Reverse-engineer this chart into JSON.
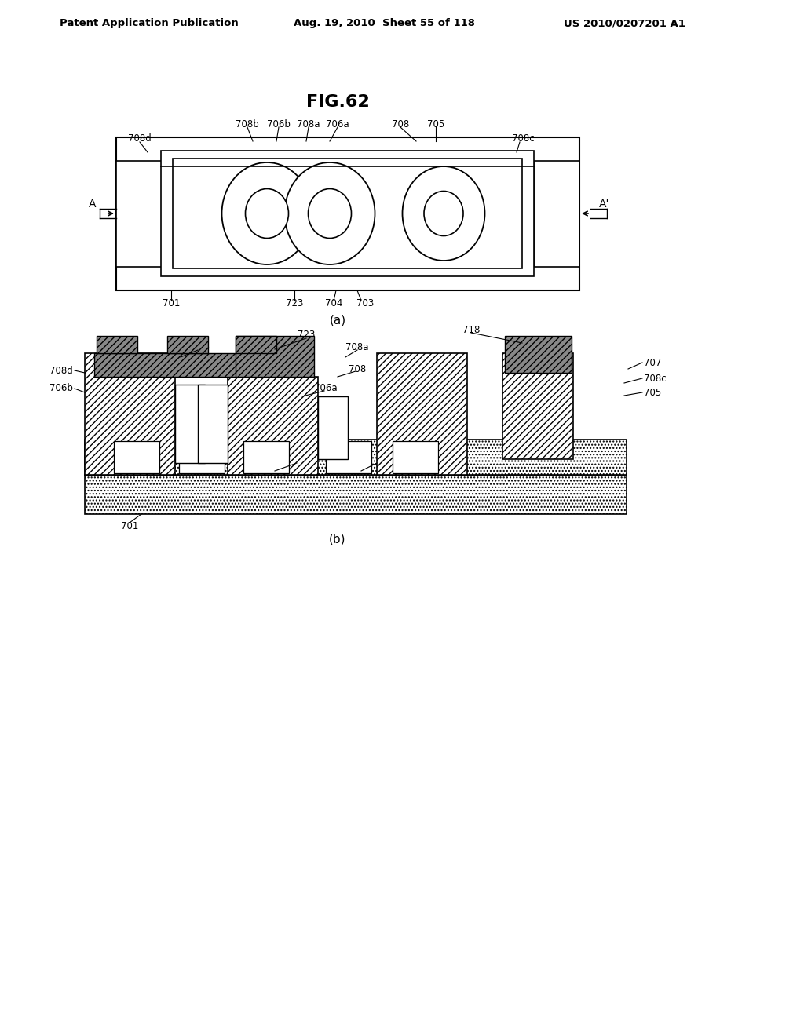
{
  "header_left": "Patent Application Publication",
  "header_mid": "Aug. 19, 2010  Sheet 55 of 118",
  "header_right": "US 2010/0207201 A1",
  "title": "FIG.62",
  "bg_color": "#ffffff"
}
